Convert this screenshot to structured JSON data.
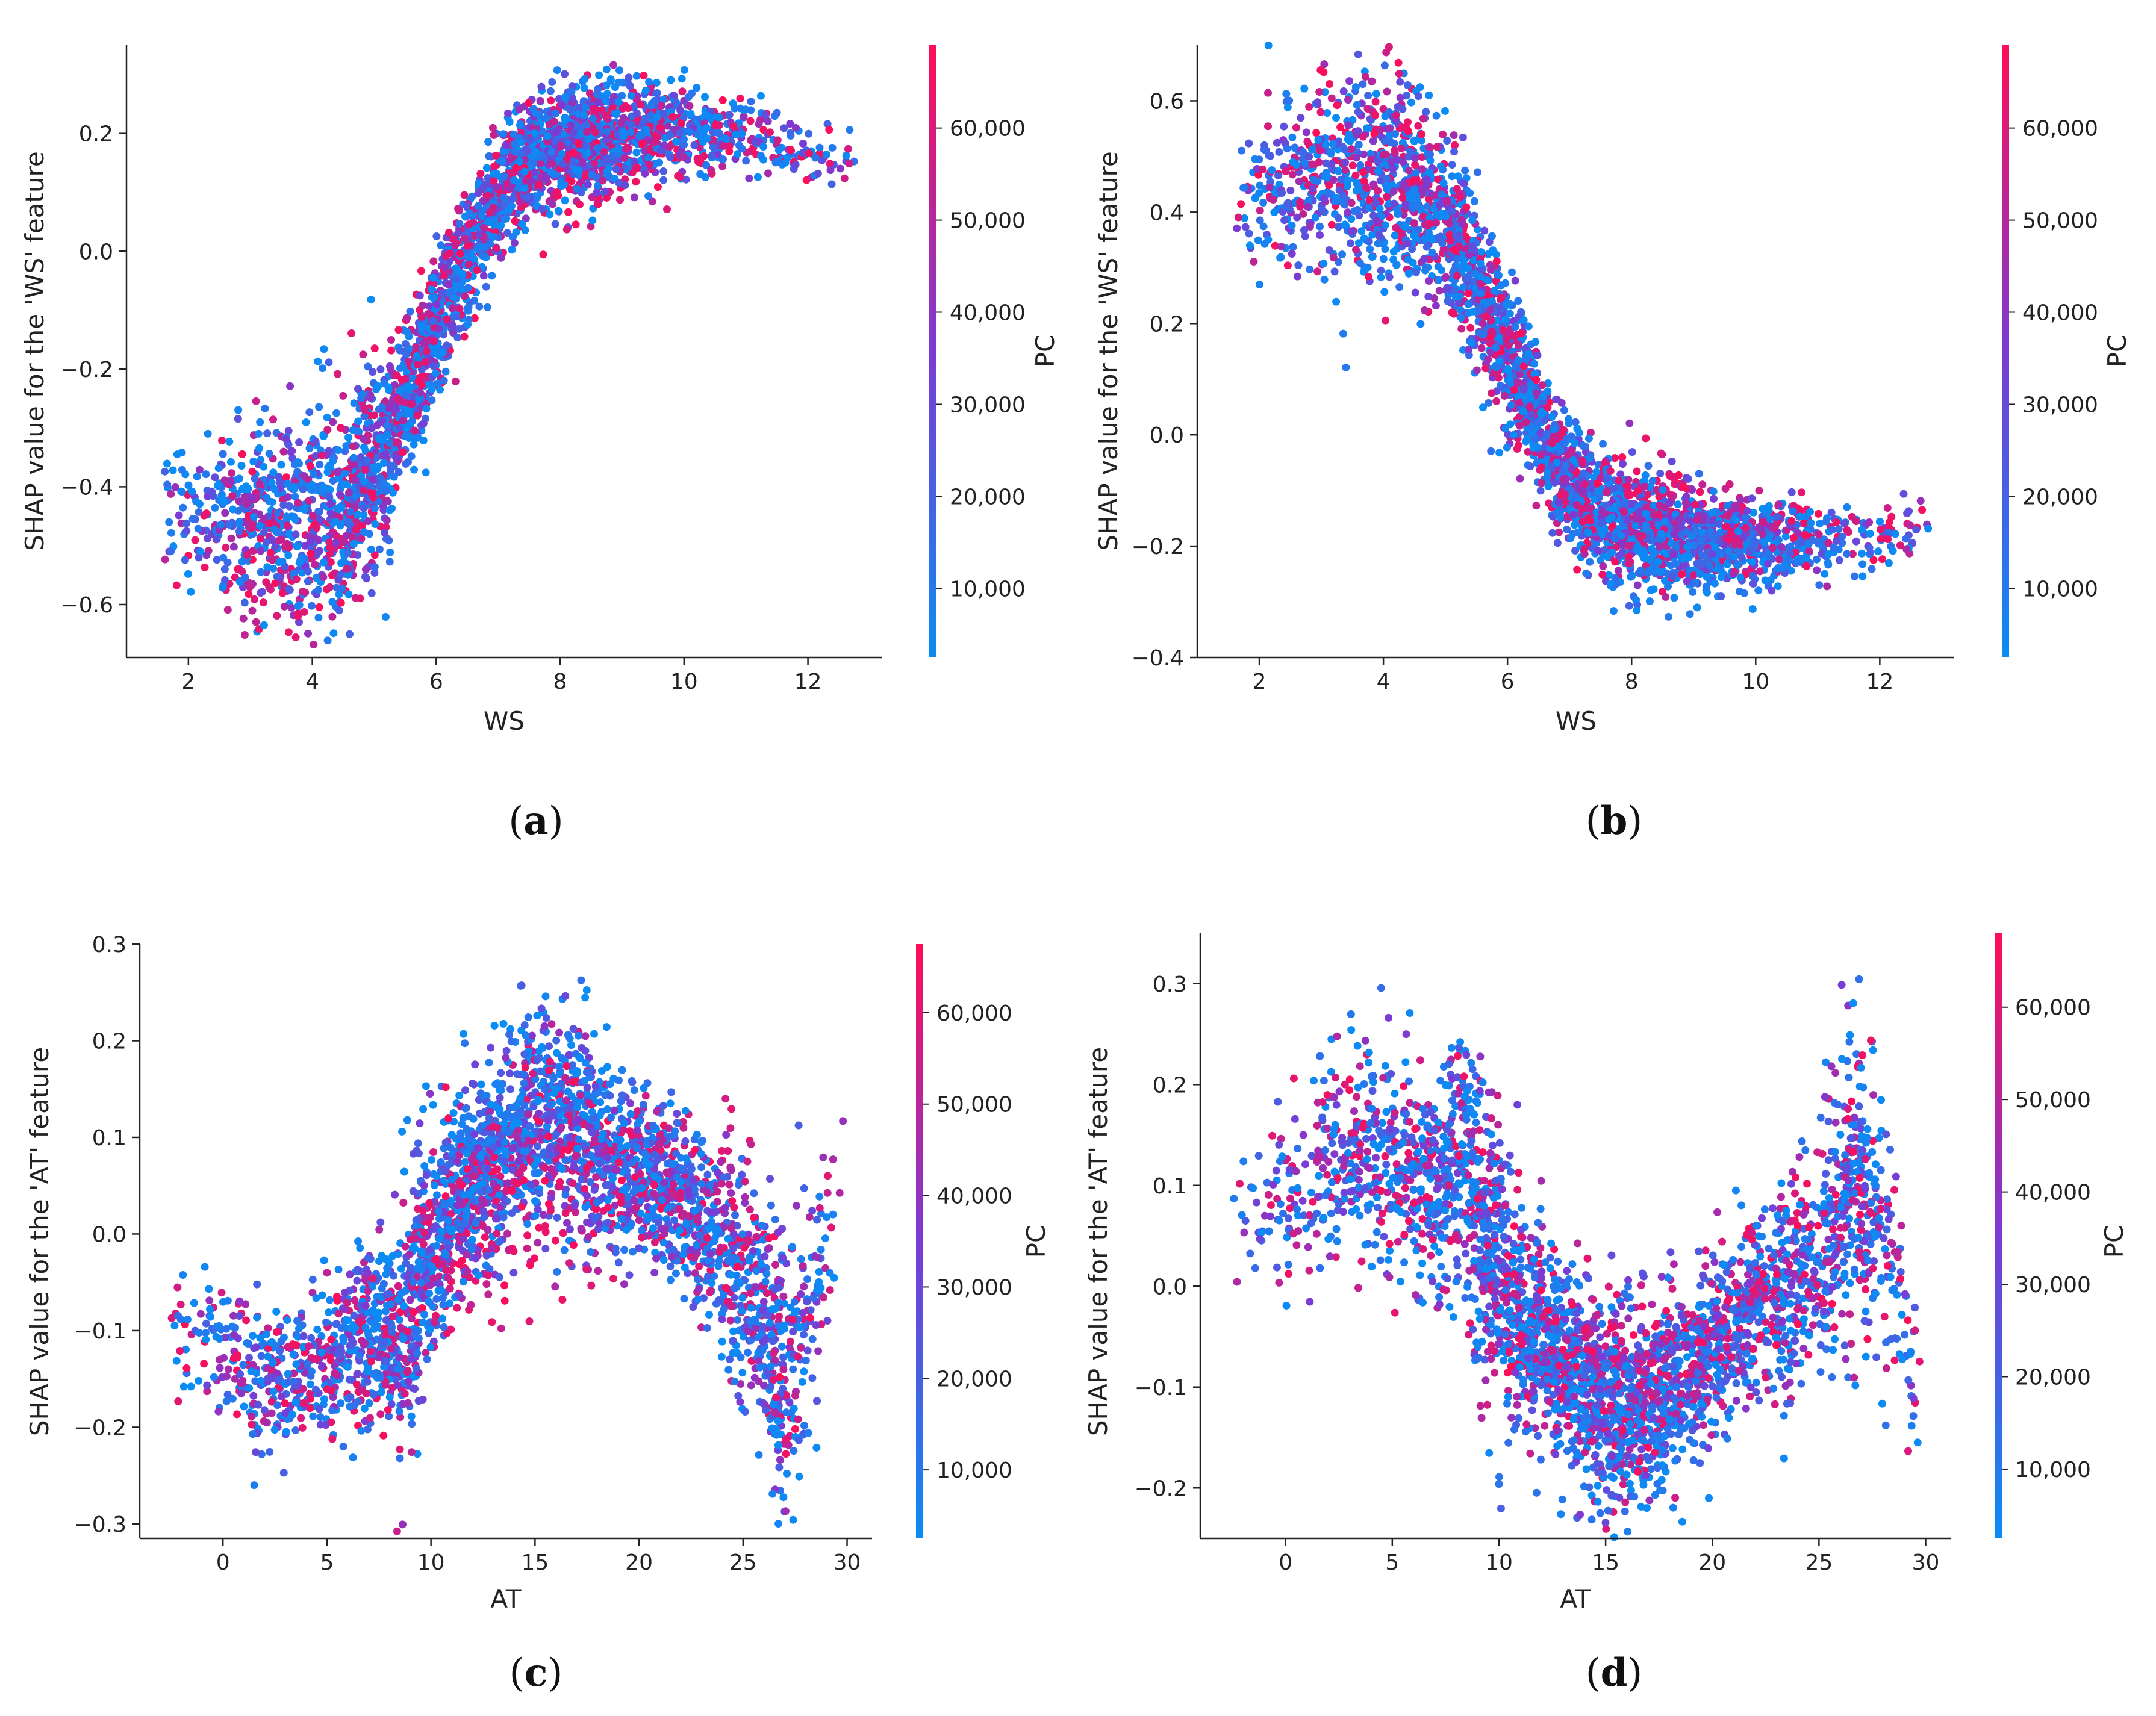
{
  "chart_data": [
    {
      "id": "a",
      "caption": {
        "open": "(",
        "letter": "a",
        "close": ")"
      },
      "type": "scatter",
      "xlabel": "WS",
      "ylabel": "SHAP value for the 'WS' feature",
      "xlim": [
        1.0,
        13.2
      ],
      "ylim": [
        -0.69,
        0.35
      ],
      "xticks": [
        2,
        4,
        6,
        8,
        10,
        12
      ],
      "xtick_labels": [
        "2",
        "4",
        "6",
        "8",
        "10",
        "12"
      ],
      "yticks": [
        -0.6,
        -0.4,
        -0.2,
        0.0,
        0.2
      ],
      "ytick_labels": [
        "−0.6",
        "−0.4",
        "−0.2",
        "0.0",
        "0.2"
      ],
      "colorbar": {
        "label": "PC",
        "min": 2500,
        "max": 69000,
        "ticks": [
          10000,
          20000,
          30000,
          40000,
          50000,
          60000
        ],
        "tick_labels": [
          "10,000",
          "20,000",
          "30,000",
          "40,000",
          "50,000",
          "60,000"
        ],
        "low_color": "#0a8cf5",
        "mid_color": "#7b3bd4",
        "high_color": "#ff0d57"
      },
      "trend": [
        [
          1.6,
          -0.43
        ],
        [
          2.5,
          -0.44
        ],
        [
          3.5,
          -0.46
        ],
        [
          4.5,
          -0.44
        ],
        [
          5.2,
          -0.33
        ],
        [
          5.8,
          -0.18
        ],
        [
          6.3,
          -0.05
        ],
        [
          6.8,
          0.06
        ],
        [
          7.3,
          0.14
        ],
        [
          8.0,
          0.18
        ],
        [
          9.0,
          0.2
        ],
        [
          10.0,
          0.21
        ],
        [
          11.0,
          0.19
        ],
        [
          12.0,
          0.17
        ],
        [
          12.8,
          0.16
        ]
      ],
      "spread": [
        [
          1.6,
          0.05
        ],
        [
          3,
          0.1
        ],
        [
          4.5,
          0.11
        ],
        [
          5.5,
          0.07
        ],
        [
          6.5,
          0.06
        ],
        [
          8,
          0.06
        ],
        [
          10,
          0.04
        ],
        [
          12.8,
          0.03
        ]
      ],
      "red_bias": [
        [
          1.6,
          -0.05
        ],
        [
          4,
          -0.08
        ],
        [
          5.5,
          0.04
        ],
        [
          7,
          0.0
        ],
        [
          8.5,
          -0.03
        ],
        [
          11,
          -0.02
        ],
        [
          12.8,
          0
        ]
      ],
      "x_density": [
        [
          1.6,
          0.3
        ],
        [
          3,
          1.5
        ],
        [
          5,
          3.0
        ],
        [
          7,
          3.0
        ],
        [
          8.5,
          3.0
        ],
        [
          10,
          1.5
        ],
        [
          11,
          0.6
        ],
        [
          12.8,
          0.15
        ]
      ],
      "n_points": 3200,
      "seed": 11
    },
    {
      "id": "b",
      "caption": {
        "open": "(",
        "letter": "b",
        "close": ")"
      },
      "type": "scatter",
      "xlabel": "WS",
      "ylabel": "SHAP value for the 'WS' feature",
      "xlim": [
        1.0,
        13.2
      ],
      "ylim": [
        -0.4,
        0.7
      ],
      "xticks": [
        2,
        4,
        6,
        8,
        10,
        12
      ],
      "xtick_labels": [
        "2",
        "4",
        "6",
        "8",
        "10",
        "12"
      ],
      "yticks": [
        -0.4,
        -0.2,
        0.0,
        0.2,
        0.4,
        0.6
      ],
      "ytick_labels": [
        "−0.4",
        "−0.2",
        "0.0",
        "0.2",
        "0.4",
        "0.6"
      ],
      "colorbar": {
        "label": "PC",
        "min": 2500,
        "max": 69000,
        "ticks": [
          10000,
          20000,
          30000,
          40000,
          50000,
          60000
        ],
        "tick_labels": [
          "10,000",
          "20,000",
          "30,000",
          "40,000",
          "50,000",
          "60,000"
        ],
        "low_color": "#0a8cf5",
        "mid_color": "#7b3bd4",
        "high_color": "#ff0d57"
      },
      "trend": [
        [
          1.6,
          0.42
        ],
        [
          2.5,
          0.44
        ],
        [
          3.5,
          0.46
        ],
        [
          4.5,
          0.44
        ],
        [
          5.2,
          0.35
        ],
        [
          5.8,
          0.2
        ],
        [
          6.3,
          0.07
        ],
        [
          6.8,
          -0.06
        ],
        [
          7.3,
          -0.13
        ],
        [
          8.0,
          -0.17
        ],
        [
          9.0,
          -0.19
        ],
        [
          10.0,
          -0.2
        ],
        [
          11.0,
          -0.19
        ],
        [
          12.0,
          -0.18
        ],
        [
          12.8,
          -0.16
        ]
      ],
      "spread": [
        [
          1.6,
          0.06
        ],
        [
          3,
          0.1
        ],
        [
          4.5,
          0.1
        ],
        [
          5.5,
          0.08
        ],
        [
          6.5,
          0.06
        ],
        [
          8,
          0.06
        ],
        [
          10,
          0.04
        ],
        [
          12.8,
          0.03
        ]
      ],
      "red_bias": [
        [
          1.6,
          0.0
        ],
        [
          4,
          0.07
        ],
        [
          5.5,
          -0.04
        ],
        [
          7,
          0.0
        ],
        [
          8.5,
          0.05
        ],
        [
          11,
          0.02
        ],
        [
          12.8,
          0
        ]
      ],
      "x_density": [
        [
          1.6,
          0.3
        ],
        [
          3,
          1.5
        ],
        [
          5,
          3.0
        ],
        [
          7,
          3.0
        ],
        [
          8.5,
          3.0
        ],
        [
          10,
          1.5
        ],
        [
          11,
          0.6
        ],
        [
          12.8,
          0.15
        ]
      ],
      "n_points": 3200,
      "seed": 23
    },
    {
      "id": "c",
      "caption": {
        "open": "(",
        "letter": "c",
        "close": ")"
      },
      "type": "scatter",
      "xlabel": "AT",
      "ylabel": "SHAP value for the 'AT' feature",
      "xlim": [
        -4,
        31.2
      ],
      "ylim": [
        -0.315,
        0.3
      ],
      "xticks": [
        0,
        5,
        10,
        15,
        20,
        25,
        30
      ],
      "xtick_labels": [
        "0",
        "5",
        "10",
        "15",
        "20",
        "25",
        "30"
      ],
      "yticks": [
        -0.3,
        -0.2,
        -0.1,
        0.0,
        0.1,
        0.2,
        0.3
      ],
      "ytick_labels": [
        "−0.3",
        "−0.2",
        "−0.1",
        "0.0",
        "0.1",
        "0.2",
        "0.3"
      ],
      "colorbar": {
        "label": "PC",
        "min": 2500,
        "max": 67500,
        "ticks": [
          10000,
          20000,
          30000,
          40000,
          50000,
          60000
        ],
        "tick_labels": [
          "10,000",
          "20,000",
          "30,000",
          "40,000",
          "50,000",
          "60,000"
        ],
        "low_color": "#0a8cf5",
        "mid_color": "#7b3bd4",
        "high_color": "#ff0d57"
      },
      "trend": [
        [
          -2.5,
          -0.1
        ],
        [
          0,
          -0.12
        ],
        [
          3,
          -0.16
        ],
        [
          5,
          -0.14
        ],
        [
          7,
          -0.09
        ],
        [
          8.5,
          -0.12
        ],
        [
          9.5,
          -0.03
        ],
        [
          11,
          0.03
        ],
        [
          13,
          0.07
        ],
        [
          15,
          0.12
        ],
        [
          17,
          0.11
        ],
        [
          19,
          0.07
        ],
        [
          21,
          0.06
        ],
        [
          23,
          0.01
        ],
        [
          24.5,
          -0.03
        ],
        [
          26,
          -0.1
        ],
        [
          27,
          -0.17
        ],
        [
          28.5,
          -0.05
        ],
        [
          29.8,
          0.05
        ]
      ],
      "spread": [
        [
          -2.5,
          0.04
        ],
        [
          3,
          0.05
        ],
        [
          8,
          0.05
        ],
        [
          9,
          0.08
        ],
        [
          12,
          0.05
        ],
        [
          15,
          0.07
        ],
        [
          19,
          0.05
        ],
        [
          23,
          0.05
        ],
        [
          27,
          0.08
        ],
        [
          29.8,
          0.06
        ]
      ],
      "red_bias": [
        [
          -2.5,
          0.0
        ],
        [
          5,
          0.0
        ],
        [
          11,
          -0.02
        ],
        [
          15,
          -0.06
        ],
        [
          20,
          -0.03
        ],
        [
          25,
          0.05
        ],
        [
          27,
          0.03
        ],
        [
          29.8,
          0.06
        ]
      ],
      "x_density": [
        [
          -2.5,
          0.2
        ],
        [
          0,
          0.6
        ],
        [
          5,
          1.5
        ],
        [
          8,
          2.5
        ],
        [
          10,
          3.0
        ],
        [
          15,
          3.0
        ],
        [
          20,
          2.0
        ],
        [
          25,
          2.0
        ],
        [
          27,
          2.5
        ],
        [
          28.5,
          0.8
        ],
        [
          29.8,
          0.3
        ]
      ],
      "n_points": 3200,
      "seed": 37
    },
    {
      "id": "d",
      "caption": {
        "open": "(",
        "letter": "d",
        "close": ")"
      },
      "type": "scatter",
      "xlabel": "AT",
      "ylabel": "SHAP value for the 'AT' feature",
      "xlim": [
        -4,
        31.2
      ],
      "ylim": [
        -0.25,
        0.35
      ],
      "xticks": [
        0,
        5,
        10,
        15,
        20,
        25,
        30
      ],
      "xtick_labels": [
        "0",
        "5",
        "10",
        "15",
        "20",
        "25",
        "30"
      ],
      "yticks": [
        -0.2,
        -0.1,
        0.0,
        0.1,
        0.2,
        0.3
      ],
      "ytick_labels": [
        "−0.2",
        "−0.1",
        "0.0",
        "0.1",
        "0.2",
        "0.3"
      ],
      "colorbar": {
        "label": "PC",
        "min": 2500,
        "max": 68000,
        "ticks": [
          10000,
          20000,
          30000,
          40000,
          50000,
          60000
        ],
        "tick_labels": [
          "10,000",
          "20,000",
          "30,000",
          "40,000",
          "50,000",
          "60,000"
        ],
        "low_color": "#0a8cf5",
        "mid_color": "#7b3bd4",
        "high_color": "#ff0d57"
      },
      "trend": [
        [
          -2.5,
          0.04
        ],
        [
          0,
          0.09
        ],
        [
          3,
          0.14
        ],
        [
          5,
          0.13
        ],
        [
          7,
          0.1
        ],
        [
          8.5,
          0.12
        ],
        [
          9.5,
          0.04
        ],
        [
          11,
          -0.03
        ],
        [
          13,
          -0.08
        ],
        [
          15,
          -0.12
        ],
        [
          17,
          -0.12
        ],
        [
          19,
          -0.08
        ],
        [
          21,
          -0.05
        ],
        [
          23,
          -0.01
        ],
        [
          25,
          0.03
        ],
        [
          26.5,
          0.12
        ],
        [
          27.5,
          0.08
        ],
        [
          28.5,
          0.02
        ],
        [
          29.8,
          -0.12
        ]
      ],
      "spread": [
        [
          -2.5,
          0.05
        ],
        [
          3,
          0.06
        ],
        [
          8,
          0.06
        ],
        [
          9,
          0.09
        ],
        [
          12,
          0.05
        ],
        [
          15,
          0.06
        ],
        [
          19,
          0.05
        ],
        [
          23,
          0.05
        ],
        [
          26.5,
          0.09
        ],
        [
          29.8,
          0.05
        ]
      ],
      "red_bias": [
        [
          -2.5,
          0.0
        ],
        [
          5,
          0.0
        ],
        [
          11,
          0.0
        ],
        [
          15,
          0.04
        ],
        [
          20,
          0.02
        ],
        [
          25,
          0.0
        ],
        [
          27,
          -0.01
        ],
        [
          29.8,
          0.0
        ]
      ],
      "x_density": [
        [
          -2.5,
          0.2
        ],
        [
          0,
          0.6
        ],
        [
          5,
          1.5
        ],
        [
          8,
          2.5
        ],
        [
          10,
          3.0
        ],
        [
          15,
          3.0
        ],
        [
          20,
          2.0
        ],
        [
          25,
          2.0
        ],
        [
          27,
          2.5
        ],
        [
          28.5,
          0.8
        ],
        [
          29.8,
          0.3
        ]
      ],
      "n_points": 3200,
      "seed": 53
    }
  ]
}
